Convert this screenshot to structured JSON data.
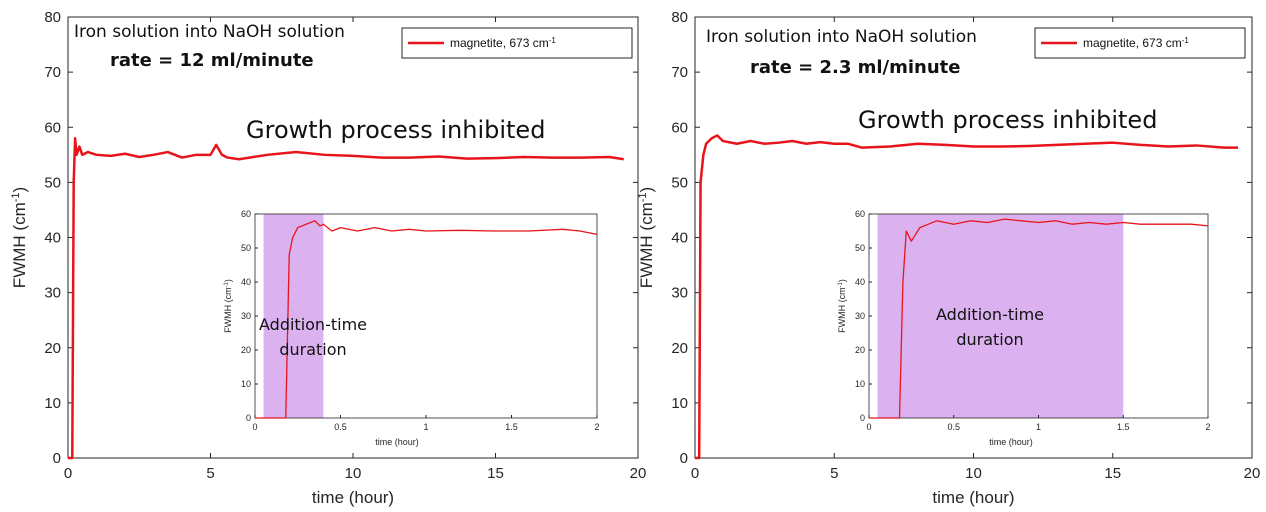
{
  "chart_data": [
    {
      "type": "line",
      "annotation_line1": "Iron solution into NaOH solution",
      "annotation_line2": "rate = 12 ml/minute",
      "annotation_main": "Growth process inhibited",
      "xlabel": "time (hour)",
      "ylabel_base": "FWMH (cm",
      "ylabel_sup": "-1",
      "ylabel_close": ")",
      "xlim": [
        0,
        20
      ],
      "ylim": [
        0,
        80
      ],
      "xticks": [
        "0",
        "5",
        "10",
        "15",
        "20"
      ],
      "yticks": [
        "0",
        "10",
        "20",
        "30",
        "40",
        "50",
        "60",
        "70",
        "80"
      ],
      "legend_position": "top-right",
      "series": [
        {
          "name": "magnetite, 673 cm",
          "name_sup": "-1",
          "color": "#e8141b",
          "x": [
            0,
            0.15,
            0.2,
            0.25,
            0.3,
            0.4,
            0.5,
            0.7,
            1.0,
            1.5,
            2.0,
            2.5,
            3.0,
            3.5,
            4.0,
            4.5,
            5.0,
            5.2,
            5.4,
            5.6,
            6.0,
            7.0,
            8.0,
            9.0,
            10.0,
            11.0,
            12.0,
            13.0,
            14.0,
            15.0,
            16.0,
            17.0,
            18.0,
            19.0,
            19.5
          ],
          "y": [
            0,
            0,
            50,
            58,
            55,
            56.5,
            55,
            55.5,
            55,
            54.8,
            55.2,
            54.6,
            55,
            55.5,
            54.5,
            55,
            55,
            56.8,
            55,
            54.5,
            54.2,
            55,
            55.5,
            55,
            54.8,
            54.5,
            54.5,
            54.7,
            54.3,
            54.4,
            54.6,
            54.5,
            54.5,
            54.6,
            54.2
          ]
        }
      ],
      "inset": {
        "xlabel": "time (hour)",
        "ylabel_base": "FWMH (cm",
        "ylabel_sup": "-1",
        "ylabel_close": ")",
        "xlim": [
          0,
          2
        ],
        "ylim": [
          0,
          60
        ],
        "xticks": [
          "0",
          "0.5",
          "1",
          "1.5",
          "2"
        ],
        "yticks": [
          "0",
          "10",
          "20",
          "30",
          "40",
          "50",
          "60"
        ],
        "shaded_region": [
          0.05,
          0.4
        ],
        "shaded_label_line1": "Addition-time",
        "shaded_label_line2": "duration",
        "x": [
          0,
          0.18,
          0.2,
          0.22,
          0.25,
          0.3,
          0.35,
          0.38,
          0.4,
          0.45,
          0.5,
          0.6,
          0.7,
          0.8,
          0.9,
          1.0,
          1.2,
          1.4,
          1.6,
          1.8,
          1.9,
          2.0
        ],
        "y": [
          0,
          0,
          48,
          53,
          56,
          57,
          58,
          56.5,
          57,
          55,
          56,
          55,
          56,
          55,
          55.5,
          55,
          55.2,
          55,
          55,
          55.5,
          55,
          54
        ]
      }
    },
    {
      "type": "line",
      "annotation_line1": "Iron solution into NaOH solution",
      "annotation_line2": "rate = 2.3 ml/minute",
      "annotation_main": "Growth process inhibited",
      "xlabel": "time (hour)",
      "ylabel_base": "FWMH (cm",
      "ylabel_sup": "-1",
      "ylabel_close": ")",
      "xlim": [
        0,
        20
      ],
      "ylim": [
        0,
        80
      ],
      "xticks": [
        "0",
        "5",
        "10",
        "15",
        "20"
      ],
      "yticks": [
        "0",
        "10",
        "20",
        "30",
        "40",
        "50",
        "60",
        "70",
        "80"
      ],
      "legend_position": "top-right",
      "series": [
        {
          "name": "magnetite, 673 cm",
          "name_sup": "-1",
          "color": "#e8141b",
          "x": [
            0,
            0.15,
            0.2,
            0.3,
            0.4,
            0.6,
            0.8,
            1.0,
            1.5,
            2.0,
            2.5,
            3.0,
            3.5,
            4.0,
            4.5,
            5.0,
            5.5,
            6.0,
            7.0,
            8.0,
            9.0,
            10.0,
            11.0,
            12.0,
            13.0,
            14.0,
            15.0,
            16.0,
            17.0,
            18.0,
            19.0,
            19.5
          ],
          "y": [
            0,
            0,
            50,
            55,
            57,
            58,
            58.5,
            57.5,
            57,
            57.5,
            57,
            57.2,
            57.5,
            57,
            57.3,
            57,
            57,
            56.3,
            56.5,
            57,
            56.8,
            56.5,
            56.5,
            56.6,
            56.8,
            57,
            57.2,
            56.8,
            56.5,
            56.7,
            56.3,
            56.3
          ]
        }
      ],
      "inset": {
        "xlabel": "time (hour)",
        "ylabel_base": "FWMH (cm",
        "ylabel_sup": "-1",
        "ylabel_close": ")",
        "xlim": [
          0,
          2
        ],
        "ylim": [
          0,
          60
        ],
        "xticks": [
          "0",
          "0.5",
          "1",
          "1.5",
          "2"
        ],
        "yticks": [
          "0",
          "10",
          "20",
          "30",
          "40",
          "50",
          "60"
        ],
        "shaded_region": [
          0.05,
          1.5
        ],
        "shaded_label_line1": "Addition-time",
        "shaded_label_line2": "duration",
        "x": [
          0,
          0.18,
          0.2,
          0.22,
          0.25,
          0.3,
          0.35,
          0.4,
          0.5,
          0.6,
          0.7,
          0.8,
          0.9,
          1.0,
          1.1,
          1.2,
          1.3,
          1.4,
          1.5,
          1.6,
          1.7,
          1.8,
          1.9,
          2.0
        ],
        "y": [
          0,
          0,
          40,
          55,
          52,
          56,
          57,
          58,
          57,
          58,
          57.5,
          58.5,
          58,
          57.5,
          58,
          57,
          57.5,
          57,
          57.5,
          57,
          57,
          57,
          57,
          56.5
        ]
      }
    }
  ]
}
